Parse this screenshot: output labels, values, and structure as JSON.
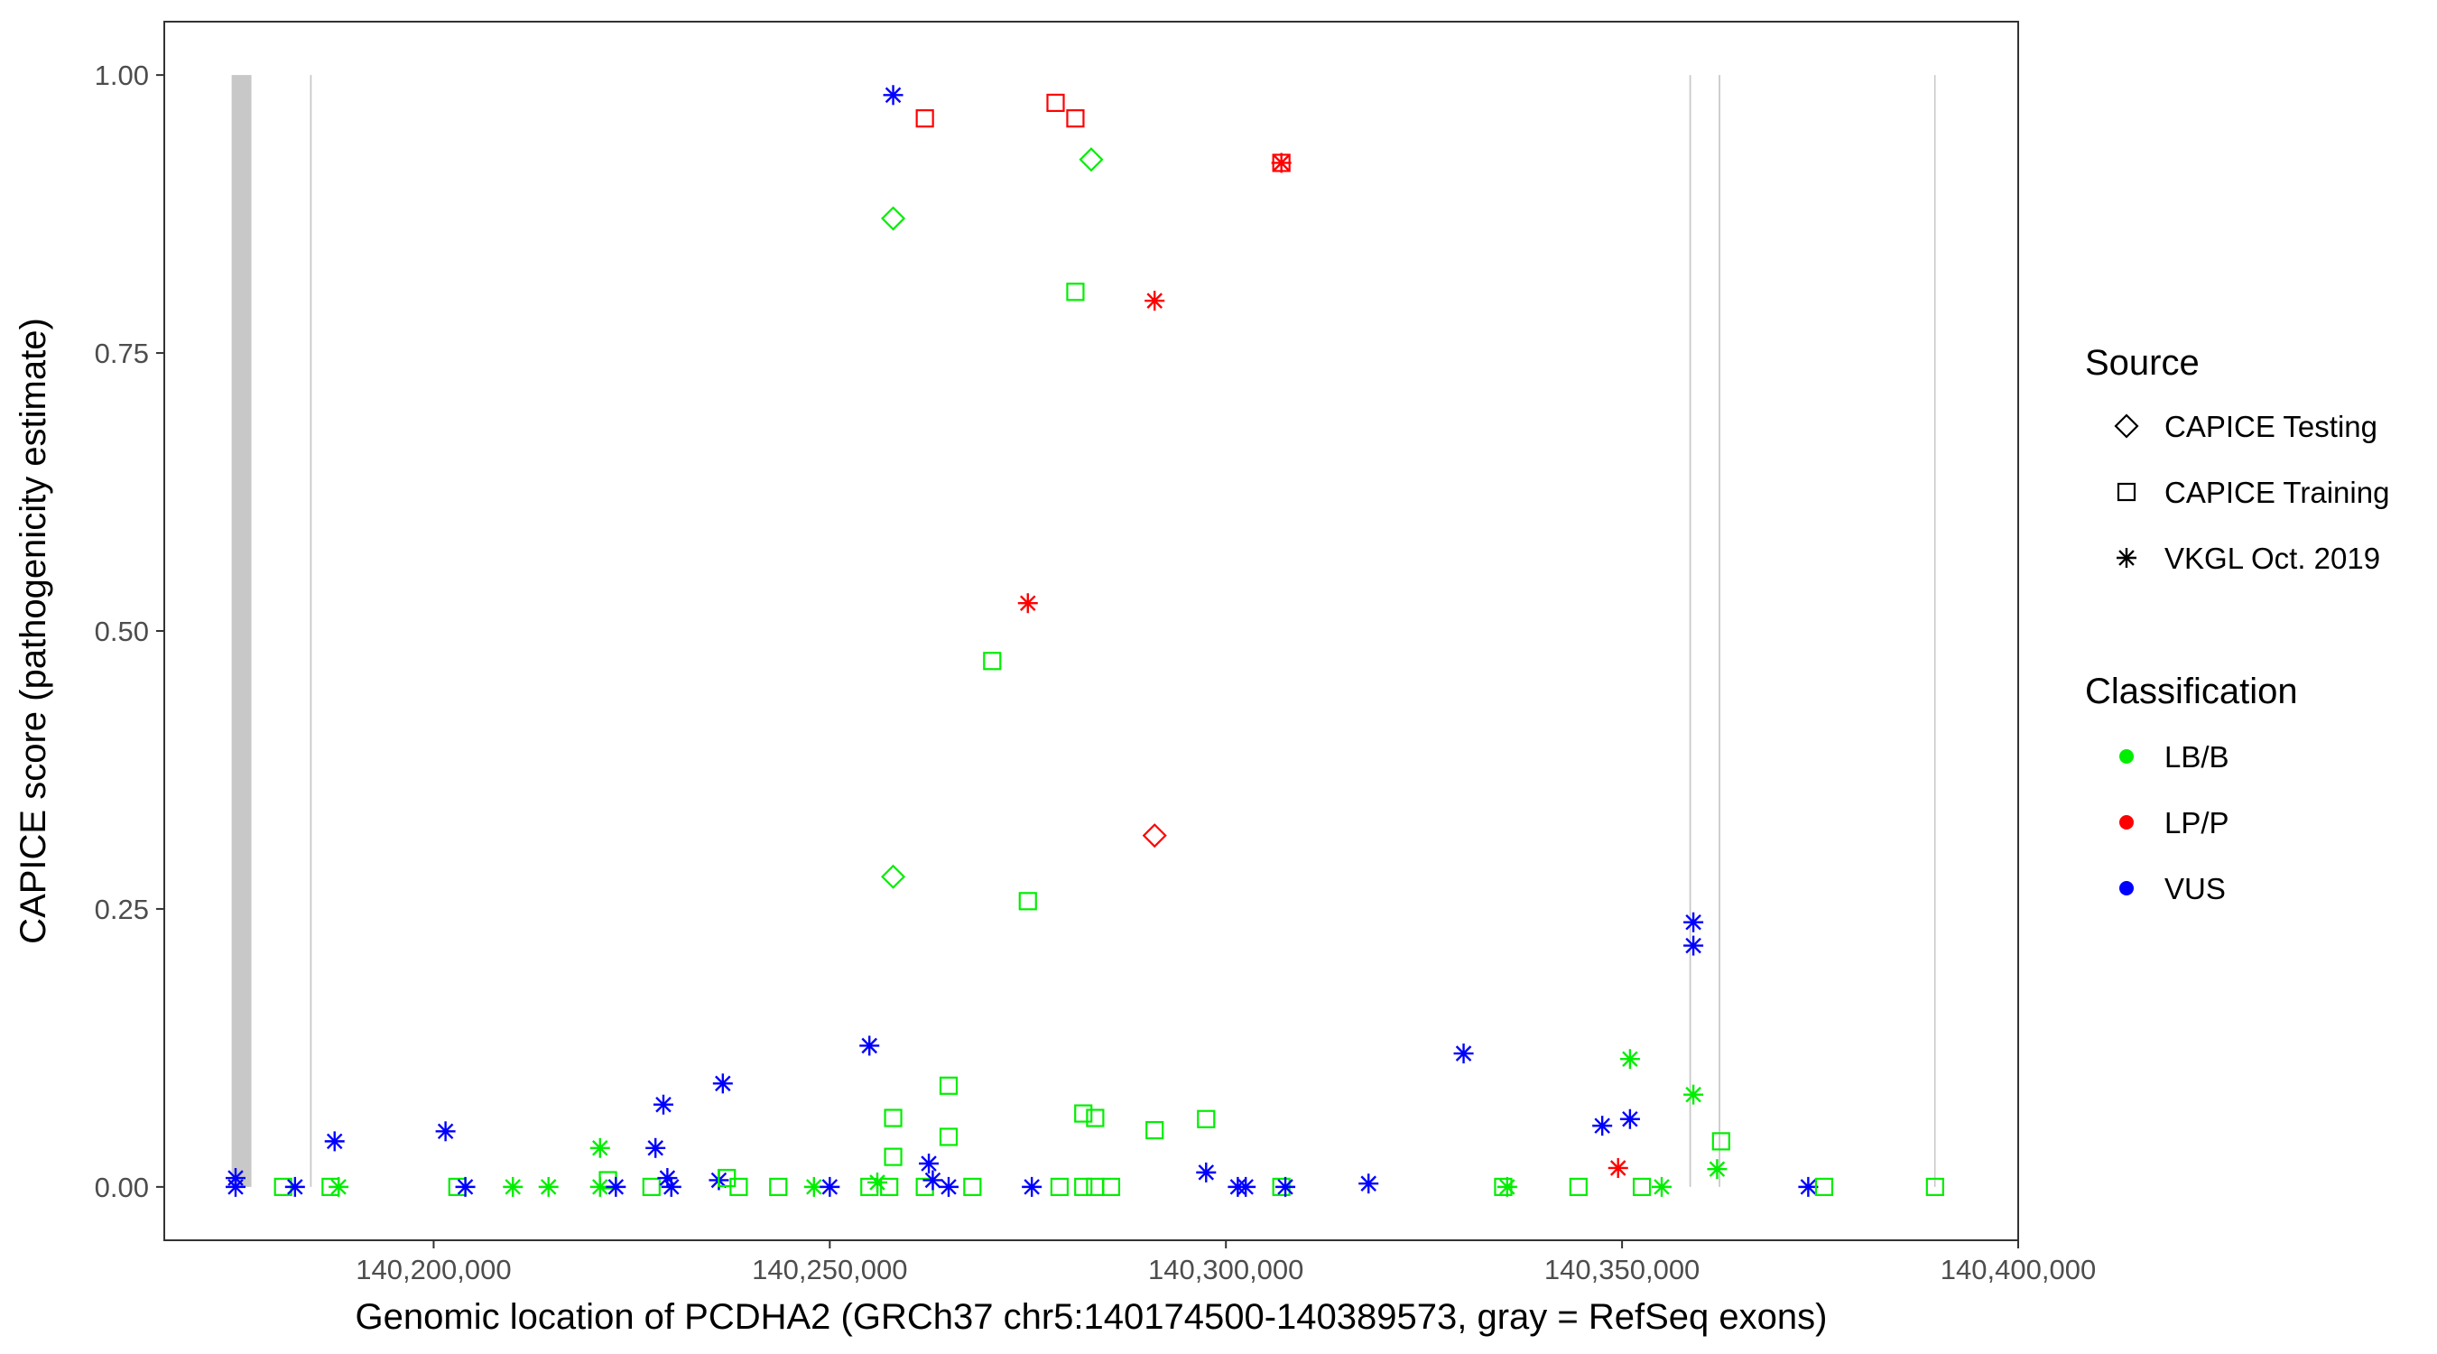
{
  "chart_data": {
    "type": "scatter",
    "xlabel": "Genomic location of PCDHA2 (GRCh37 chr5:140174500-140389573, gray = RefSeq exons)",
    "ylabel": "CAPICE score (pathogenicity estimate)",
    "xlim": [
      140166000,
      140400000
    ],
    "ylim": [
      -0.048,
      1.048
    ],
    "x_ticks": [
      140200000,
      140250000,
      140300000,
      140350000,
      140400000
    ],
    "x_tick_labels": [
      "140,200,000",
      "140,250,000",
      "140,300,000",
      "140,350,000",
      "140,400,000"
    ],
    "y_ticks": [
      0,
      0.25,
      0.5,
      0.75,
      1.0
    ],
    "y_tick_labels": [
      "0.00",
      "0.25",
      "0.50",
      "0.75",
      "1.00"
    ],
    "grid": false,
    "legend_position": "right",
    "exons": [
      {
        "start": 140174500,
        "end": 140177000
      },
      {
        "start": 140184400,
        "end": 140184600
      },
      {
        "start": 140358500,
        "end": 140358700
      },
      {
        "start": 140362200,
        "end": 140362400
      },
      {
        "start": 140389400,
        "end": 140389573
      }
    ],
    "legends": {
      "shape": {
        "title": "Source",
        "items": [
          {
            "key": "testing",
            "label": "CAPICE Testing",
            "symbol": "diamond"
          },
          {
            "key": "training",
            "label": "CAPICE Training",
            "symbol": "square"
          },
          {
            "key": "vkgl",
            "label": "VKGL Oct. 2019",
            "symbol": "asterisk"
          }
        ]
      },
      "color": {
        "title": "Classification",
        "items": [
          {
            "key": "LB",
            "label": "LB/B",
            "color": "#00ee00"
          },
          {
            "key": "LP",
            "label": "LP/P",
            "color": "#ff0000"
          },
          {
            "key": "VUS",
            "label": "VUS",
            "color": "#0000ff"
          }
        ]
      }
    },
    "points": [
      {
        "x": 140258000,
        "y": 0.982,
        "source": "vkgl",
        "class": "VUS"
      },
      {
        "x": 140262000,
        "y": 0.961,
        "source": "training",
        "class": "LP"
      },
      {
        "x": 140278500,
        "y": 0.975,
        "source": "training",
        "class": "LP"
      },
      {
        "x": 140281000,
        "y": 0.961,
        "source": "training",
        "class": "LP"
      },
      {
        "x": 140283000,
        "y": 0.924,
        "source": "testing",
        "class": "LB"
      },
      {
        "x": 140307000,
        "y": 0.921,
        "source": "training",
        "class": "LP"
      },
      {
        "x": 140307000,
        "y": 0.921,
        "source": "vkgl",
        "class": "LP"
      },
      {
        "x": 140258000,
        "y": 0.871,
        "source": "testing",
        "class": "LB"
      },
      {
        "x": 140281000,
        "y": 0.805,
        "source": "training",
        "class": "LB"
      },
      {
        "x": 140291000,
        "y": 0.797,
        "source": "vkgl",
        "class": "LP"
      },
      {
        "x": 140275000,
        "y": 0.525,
        "source": "vkgl",
        "class": "LP"
      },
      {
        "x": 140270500,
        "y": 0.473,
        "source": "training",
        "class": "LB"
      },
      {
        "x": 140291000,
        "y": 0.316,
        "source": "testing",
        "class": "LP"
      },
      {
        "x": 140258000,
        "y": 0.279,
        "source": "testing",
        "class": "LB"
      },
      {
        "x": 140275000,
        "y": 0.257,
        "source": "training",
        "class": "LB"
      },
      {
        "x": 140359000,
        "y": 0.238,
        "source": "vkgl",
        "class": "VUS"
      },
      {
        "x": 140359000,
        "y": 0.217,
        "source": "vkgl",
        "class": "VUS"
      },
      {
        "x": 140255000,
        "y": 0.127,
        "source": "vkgl",
        "class": "VUS"
      },
      {
        "x": 140330000,
        "y": 0.12,
        "source": "vkgl",
        "class": "VUS"
      },
      {
        "x": 140351000,
        "y": 0.115,
        "source": "vkgl",
        "class": "LB"
      },
      {
        "x": 140236500,
        "y": 0.093,
        "source": "vkgl",
        "class": "VUS"
      },
      {
        "x": 140265000,
        "y": 0.091,
        "source": "training",
        "class": "LB"
      },
      {
        "x": 140359000,
        "y": 0.083,
        "source": "vkgl",
        "class": "LB"
      },
      {
        "x": 140229000,
        "y": 0.074,
        "source": "vkgl",
        "class": "VUS"
      },
      {
        "x": 140282000,
        "y": 0.066,
        "source": "training",
        "class": "LB"
      },
      {
        "x": 140283500,
        "y": 0.062,
        "source": "training",
        "class": "LB"
      },
      {
        "x": 140258000,
        "y": 0.062,
        "source": "training",
        "class": "LB"
      },
      {
        "x": 140297500,
        "y": 0.061,
        "source": "training",
        "class": "LB"
      },
      {
        "x": 140351000,
        "y": 0.061,
        "source": "vkgl",
        "class": "VUS"
      },
      {
        "x": 140347500,
        "y": 0.055,
        "source": "vkgl",
        "class": "VUS"
      },
      {
        "x": 140201500,
        "y": 0.05,
        "source": "vkgl",
        "class": "VUS"
      },
      {
        "x": 140291000,
        "y": 0.051,
        "source": "training",
        "class": "LB"
      },
      {
        "x": 140265000,
        "y": 0.045,
        "source": "training",
        "class": "LB"
      },
      {
        "x": 140187500,
        "y": 0.041,
        "source": "vkgl",
        "class": "VUS"
      },
      {
        "x": 140362500,
        "y": 0.041,
        "source": "training",
        "class": "LB"
      },
      {
        "x": 140221000,
        "y": 0.035,
        "source": "vkgl",
        "class": "LB"
      },
      {
        "x": 140228000,
        "y": 0.035,
        "source": "vkgl",
        "class": "VUS"
      },
      {
        "x": 140258000,
        "y": 0.027,
        "source": "training",
        "class": "LB"
      },
      {
        "x": 140262500,
        "y": 0.021,
        "source": "vkgl",
        "class": "VUS"
      },
      {
        "x": 140349500,
        "y": 0.017,
        "source": "vkgl",
        "class": "LP"
      },
      {
        "x": 140362000,
        "y": 0.016,
        "source": "vkgl",
        "class": "LB"
      },
      {
        "x": 140297500,
        "y": 0.013,
        "source": "vkgl",
        "class": "VUS"
      },
      {
        "x": 140175000,
        "y": 0.008,
        "source": "vkgl",
        "class": "VUS"
      },
      {
        "x": 140175000,
        "y": 0.0,
        "source": "vkgl",
        "class": "VUS"
      },
      {
        "x": 140181000,
        "y": 0.0,
        "source": "training",
        "class": "LB"
      },
      {
        "x": 140182500,
        "y": 0.0,
        "source": "vkgl",
        "class": "VUS"
      },
      {
        "x": 140187000,
        "y": 0.0,
        "source": "training",
        "class": "LB"
      },
      {
        "x": 140188000,
        "y": 0.0,
        "source": "vkgl",
        "class": "LB"
      },
      {
        "x": 140203000,
        "y": 0.0,
        "source": "training",
        "class": "LB"
      },
      {
        "x": 140204000,
        "y": 0.0,
        "source": "vkgl",
        "class": "VUS"
      },
      {
        "x": 140210000,
        "y": 0.0,
        "source": "vkgl",
        "class": "LB"
      },
      {
        "x": 140214500,
        "y": 0.0,
        "source": "vkgl",
        "class": "LB"
      },
      {
        "x": 140221000,
        "y": 0.0,
        "source": "vkgl",
        "class": "LB"
      },
      {
        "x": 140222000,
        "y": 0.006,
        "source": "training",
        "class": "LB"
      },
      {
        "x": 140223000,
        "y": 0.0,
        "source": "vkgl",
        "class": "VUS"
      },
      {
        "x": 140227500,
        "y": 0.0,
        "source": "training",
        "class": "LB"
      },
      {
        "x": 140229500,
        "y": 0.008,
        "source": "vkgl",
        "class": "VUS"
      },
      {
        "x": 140230000,
        "y": 0.0,
        "source": "vkgl",
        "class": "VUS"
      },
      {
        "x": 140236000,
        "y": 0.006,
        "source": "vkgl",
        "class": "VUS"
      },
      {
        "x": 140237000,
        "y": 0.008,
        "source": "training",
        "class": "LB"
      },
      {
        "x": 140238500,
        "y": 0.0,
        "source": "training",
        "class": "LB"
      },
      {
        "x": 140243500,
        "y": 0.0,
        "source": "training",
        "class": "LB"
      },
      {
        "x": 140248000,
        "y": 0.0,
        "source": "vkgl",
        "class": "LB"
      },
      {
        "x": 140250000,
        "y": 0.0,
        "source": "vkgl",
        "class": "VUS"
      },
      {
        "x": 140255000,
        "y": 0.0,
        "source": "training",
        "class": "LB"
      },
      {
        "x": 140256000,
        "y": 0.004,
        "source": "vkgl",
        "class": "LB"
      },
      {
        "x": 140257500,
        "y": 0.0,
        "source": "training",
        "class": "LB"
      },
      {
        "x": 140262000,
        "y": 0.0,
        "source": "training",
        "class": "LB"
      },
      {
        "x": 140263000,
        "y": 0.006,
        "source": "vkgl",
        "class": "VUS"
      },
      {
        "x": 140265000,
        "y": 0.0,
        "source": "vkgl",
        "class": "VUS"
      },
      {
        "x": 140268000,
        "y": 0.0,
        "source": "training",
        "class": "LB"
      },
      {
        "x": 140275500,
        "y": 0.0,
        "source": "vkgl",
        "class": "VUS"
      },
      {
        "x": 140279000,
        "y": 0.0,
        "source": "training",
        "class": "LB"
      },
      {
        "x": 140282000,
        "y": 0.0,
        "source": "training",
        "class": "LB"
      },
      {
        "x": 140283500,
        "y": 0.0,
        "source": "training",
        "class": "LB"
      },
      {
        "x": 140285500,
        "y": 0.0,
        "source": "training",
        "class": "LB"
      },
      {
        "x": 140301500,
        "y": 0.0,
        "source": "vkgl",
        "class": "VUS"
      },
      {
        "x": 140302500,
        "y": 0.0,
        "source": "vkgl",
        "class": "VUS"
      },
      {
        "x": 140307000,
        "y": 0.0,
        "source": "training",
        "class": "LB"
      },
      {
        "x": 140307500,
        "y": 0.0,
        "source": "vkgl",
        "class": "VUS"
      },
      {
        "x": 140318000,
        "y": 0.003,
        "source": "vkgl",
        "class": "VUS"
      },
      {
        "x": 140335000,
        "y": 0.0,
        "source": "training",
        "class": "LB"
      },
      {
        "x": 140335500,
        "y": 0.0,
        "source": "vkgl",
        "class": "LB"
      },
      {
        "x": 140344500,
        "y": 0.0,
        "source": "training",
        "class": "LB"
      },
      {
        "x": 140352500,
        "y": 0.0,
        "source": "training",
        "class": "LB"
      },
      {
        "x": 140355000,
        "y": 0.0,
        "source": "vkgl",
        "class": "LB"
      },
      {
        "x": 140373500,
        "y": 0.0,
        "source": "vkgl",
        "class": "VUS"
      },
      {
        "x": 140375500,
        "y": 0.0,
        "source": "training",
        "class": "LB"
      },
      {
        "x": 140389500,
        "y": 0.0,
        "source": "training",
        "class": "LB"
      }
    ]
  }
}
